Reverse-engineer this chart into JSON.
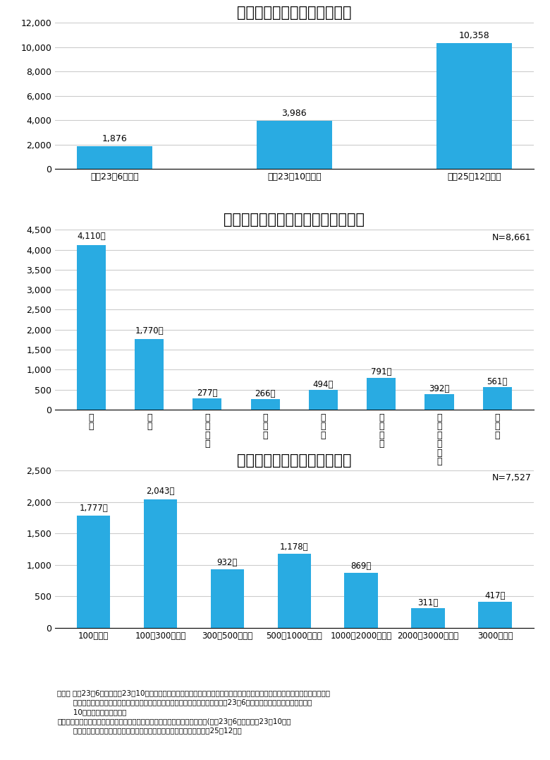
{
  "bar_color": "#29ABE2",
  "grid_color": "#CCCCCC",
  "background_color": "#FFFFFF",
  "text_color": "#000000",
  "title_fontsize": 15,
  "label_fontsize": 9,
  "tick_fontsize": 9,
  "footnote_fontsize": 7.5,
  "chart1": {
    "title": "津波避難ビルの指定数の推移",
    "categories": [
      "平成23年6月現在",
      "平成23年10月現在",
      "平成25年12月現在"
    ],
    "values": [
      1876,
      3986,
      10358
    ],
    "ylim": [
      0,
      12000
    ],
    "yticks": [
      0,
      2000,
      4000,
      6000,
      8000,
      10000,
      12000
    ],
    "labels": [
      "1,876",
      "3,986",
      "10,358"
    ]
  },
  "chart2": {
    "title": "津波避難ビルの平時の建築物の用途",
    "categories": [
      "住\n宅",
      "学\n校",
      "集\n会\n所\n等",
      "病\n院\n等",
      "ホ\nテ\nル",
      "事\n務\n所\n等",
      "店\n舗\n・\n工\n場\n等",
      "そ\nの\n他"
    ],
    "values": [
      4110,
      1770,
      277,
      266,
      494,
      791,
      392,
      561
    ],
    "ylim": [
      0,
      4500
    ],
    "yticks": [
      0,
      500,
      1000,
      1500,
      2000,
      2500,
      3000,
      3500,
      4000,
      4500
    ],
    "labels": [
      "4,110棟",
      "1,770棟",
      "277棟",
      "266棟",
      "494棟",
      "791棟",
      "392棟",
      "561棟"
    ],
    "note": "N=8,661"
  },
  "chart3": {
    "title": "津波避難ビルの受入可能人数",
    "categories": [
      "100人未満",
      "100〜300人未満",
      "300〜500人未満",
      "500〜1000人未満",
      "1000〜2000人未満",
      "2000〜3000人未満",
      "3000人以上"
    ],
    "values": [
      1777,
      2043,
      932,
      1178,
      869,
      311,
      417
    ],
    "ylim": [
      0,
      2500
    ],
    "yticks": [
      0,
      500,
      1000,
      1500,
      2000,
      2500
    ],
    "labels": [
      "1,777棟",
      "2,043棟",
      "932棟",
      "1,178棟",
      "869棟",
      "311棟",
      "417棟"
    ],
    "note": "N=7,527"
  },
  "footnote_lines": [
    "（注） 平成23年6月及び平成23年10月の調査は、東日本大震災の影響により、岩手県、宮城県、福島県を調査対象外としている。",
    "       内閣府及び国土交通省が沿岸市町村に対し実施したアンケート調査結果（平成23年6月にアンケート調査を実施、同年",
    "       10月に追加調査を実施）",
    "出典：国土交通省及び内閣府「「津波避難ビル等」に関する実態調査結果」(平成23年6月及び平成23年10月）",
    "       内閣府「津波避難に関する地方公共団体等の取組状況等調査」（平成25年12月）"
  ]
}
